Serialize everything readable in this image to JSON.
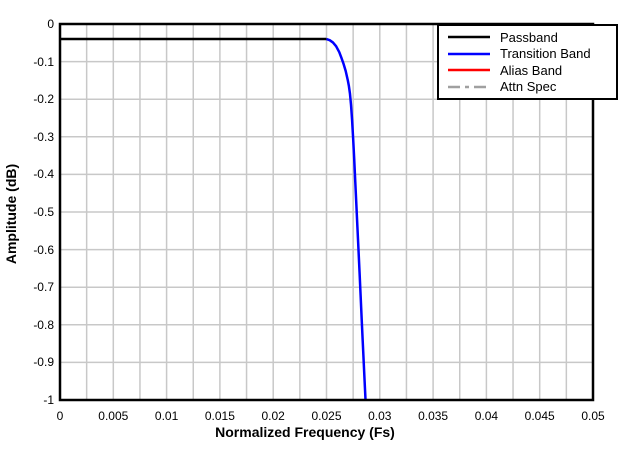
{
  "chart_data": {
    "type": "line",
    "title": "",
    "xlabel": "Normalized Frequency (Fs)",
    "ylabel": "Amplitude (dB)",
    "xlim": [
      0,
      0.05
    ],
    "ylim": [
      -1,
      0
    ],
    "x_tick_labels": [
      "0",
      "0.005",
      "0.01",
      "0.015",
      "0.02",
      "0.025",
      "0.03",
      "0.035",
      "0.04",
      "0.045",
      "0.05"
    ],
    "x_tick_values": [
      0,
      0.005,
      0.01,
      0.015,
      0.02,
      0.025,
      0.03,
      0.035,
      0.04,
      0.045,
      0.05
    ],
    "x_minor_grid_step": 0.0025,
    "y_tick_labels": [
      "0",
      "-0.1",
      "-0.2",
      "-0.3",
      "-0.4",
      "-0.5",
      "-0.6",
      "-0.7",
      "-0.8",
      "-0.9",
      "-1"
    ],
    "y_tick_values": [
      0,
      -0.1,
      -0.2,
      -0.3,
      -0.4,
      -0.5,
      -0.6,
      -0.7,
      -0.8,
      -0.9,
      -1
    ],
    "grid": {
      "show": true,
      "color": "#c8c8c8",
      "x_step": 0.0025,
      "y_step": 0.1
    },
    "axes_color": "#000000",
    "plot_background": "#ffffff",
    "legend": {
      "position": "top-right",
      "border_color": "#000000",
      "background": "#ffffff"
    },
    "series": [
      {
        "name": "Passband",
        "color": "#000000",
        "line_style": "solid",
        "points": [
          [
            0,
            -0.04
          ],
          [
            0.025,
            -0.04
          ]
        ]
      },
      {
        "name": "Transition Band",
        "color": "#0000ff",
        "line_style": "solid",
        "points": [
          [
            0.025,
            -0.04
          ],
          [
            0.0253,
            -0.043
          ],
          [
            0.0256,
            -0.049
          ],
          [
            0.0259,
            -0.059
          ],
          [
            0.0262,
            -0.075
          ],
          [
            0.0264,
            -0.09
          ],
          [
            0.0266,
            -0.106
          ],
          [
            0.0268,
            -0.125
          ],
          [
            0.027,
            -0.15
          ],
          [
            0.0271,
            -0.165
          ],
          [
            0.0272,
            -0.185
          ],
          [
            0.0273,
            -0.215
          ],
          [
            0.0274,
            -0.255
          ],
          [
            0.0275,
            -0.305
          ],
          [
            0.0276,
            -0.36
          ],
          [
            0.0277,
            -0.42
          ],
          [
            0.0278,
            -0.48
          ],
          [
            0.0279,
            -0.54
          ],
          [
            0.028,
            -0.6
          ],
          [
            0.0281,
            -0.66
          ],
          [
            0.0282,
            -0.722
          ],
          [
            0.0283,
            -0.785
          ],
          [
            0.0284,
            -0.845
          ],
          [
            0.0285,
            -0.905
          ],
          [
            0.0286,
            -0.965
          ],
          [
            0.02866,
            -1.0
          ]
        ]
      },
      {
        "name": "Alias Band",
        "color": "#ff0000",
        "line_style": "solid",
        "points": []
      },
      {
        "name": "Attn Spec",
        "color": "#a0a0a0",
        "line_style": "dash-dot",
        "points": []
      }
    ]
  }
}
